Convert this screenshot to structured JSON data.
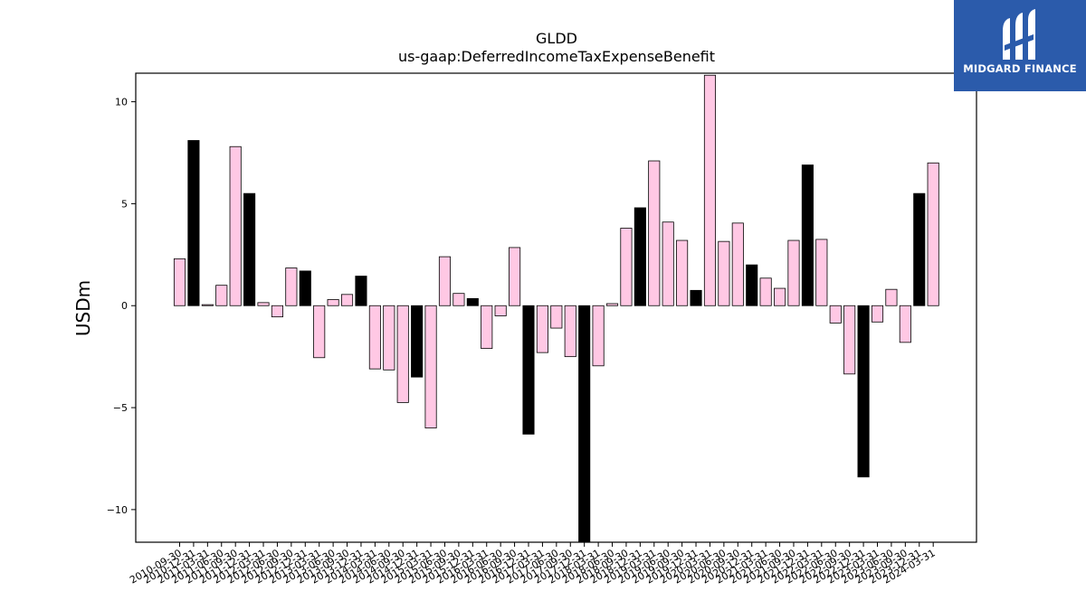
{
  "brand": {
    "name": "MIDGARD FINANCE",
    "color": "#2b5bab"
  },
  "chart_data": {
    "type": "bar",
    "title": "GLDD",
    "subtitle": "us-gaap:DeferredIncomeTaxExpenseBenefit",
    "ylabel": "USDm",
    "ylim": [
      -11.6,
      11.4
    ],
    "yticks": [
      -10,
      -5,
      0,
      5,
      10
    ],
    "colors": {
      "quarter": "#ffc8e4",
      "fiscal_year": "#000000",
      "edge": "#000000"
    },
    "x": [
      "2010-09-30",
      "2010-12-31",
      "2011-03-31",
      "2011-06-30",
      "2011-09-30",
      "2011-12-31",
      "2012-03-31",
      "2012-06-30",
      "2012-09-30",
      "2012-12-31",
      "2013-03-31",
      "2013-06-30",
      "2013-09-30",
      "2013-12-31",
      "2014-03-31",
      "2014-06-30",
      "2014-09-30",
      "2014-12-31",
      "2015-03-31",
      "2015-06-30",
      "2015-09-30",
      "2015-12-31",
      "2016-03-31",
      "2016-06-30",
      "2016-09-30",
      "2016-12-31",
      "2017-03-31",
      "2017-06-30",
      "2017-09-30",
      "2017-12-31",
      "2018-03-31",
      "2018-06-30",
      "2018-09-30",
      "2018-12-31",
      "2019-03-31",
      "2019-06-30",
      "2019-09-30",
      "2019-12-31",
      "2020-03-31",
      "2020-06-30",
      "2020-09-30",
      "2020-12-31",
      "2021-03-31",
      "2021-06-30",
      "2021-09-30",
      "2021-12-31",
      "2022-03-31",
      "2022-06-30",
      "2022-09-30",
      "2022-12-31",
      "2023-03-31",
      "2023-06-30",
      "2023-09-30",
      "2023-12-31",
      "2024-03-31"
    ],
    "values": [
      2.3,
      8.1,
      0.05,
      1.0,
      7.8,
      5.5,
      0.15,
      -0.55,
      1.85,
      1.7,
      -2.55,
      0.3,
      0.55,
      1.45,
      -3.1,
      -3.15,
      -4.75,
      -3.5,
      -6.0,
      2.4,
      0.6,
      0.35,
      -2.1,
      -0.5,
      2.85,
      -6.3,
      -2.3,
      -1.1,
      -2.5,
      -11.6,
      -2.95,
      0.1,
      3.8,
      4.8,
      7.1,
      4.1,
      3.2,
      0.75,
      11.3,
      3.15,
      4.05,
      2.0,
      1.35,
      0.85,
      3.2,
      6.9,
      3.25,
      -0.85,
      -3.35,
      -8.4,
      -0.8,
      0.8,
      -1.8,
      5.5,
      7.0
    ],
    "fiscal_year": [
      false,
      true,
      false,
      false,
      false,
      true,
      false,
      false,
      false,
      true,
      false,
      false,
      false,
      true,
      false,
      false,
      false,
      true,
      false,
      false,
      false,
      true,
      false,
      false,
      false,
      true,
      false,
      false,
      false,
      true,
      false,
      false,
      false,
      true,
      false,
      false,
      false,
      true,
      false,
      false,
      false,
      true,
      false,
      false,
      false,
      true,
      false,
      false,
      false,
      true,
      false,
      false,
      false,
      true,
      false
    ]
  }
}
